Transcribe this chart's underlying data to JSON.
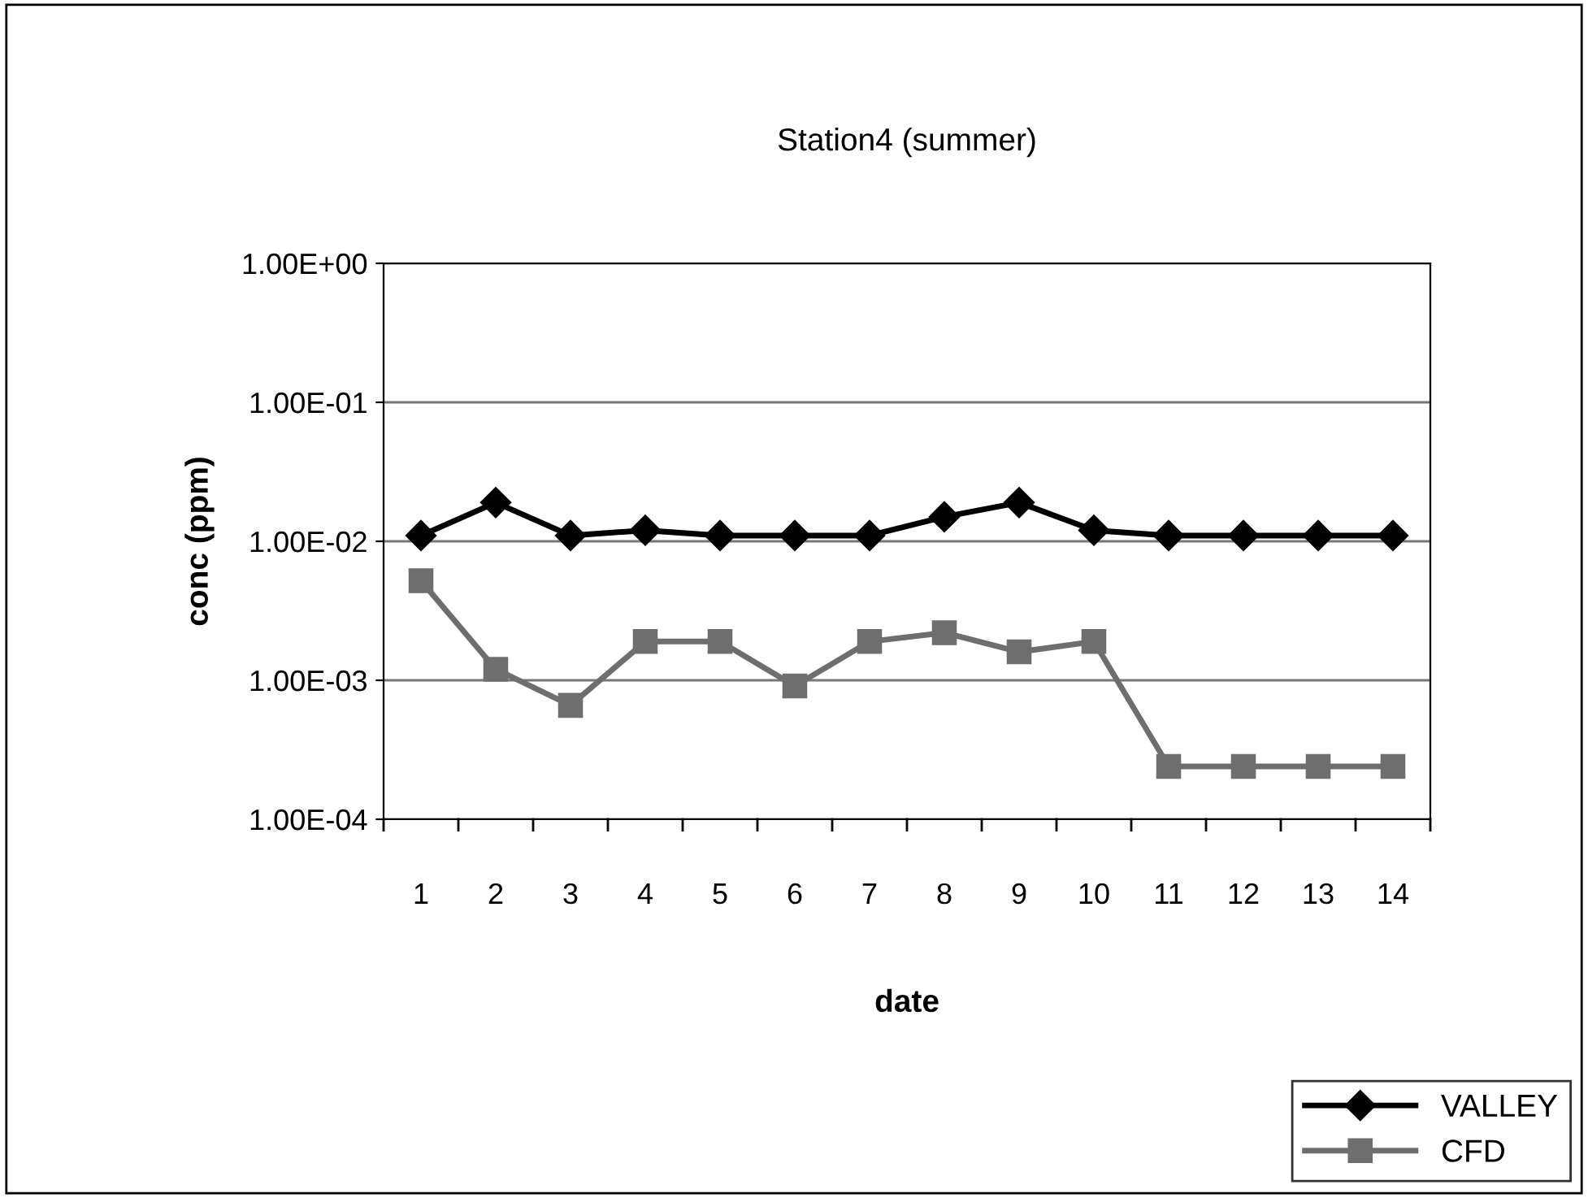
{
  "chart_data": {
    "type": "line",
    "title": "Station4 (summer)",
    "xlabel": "date",
    "ylabel": "conc (ppm)",
    "categories": [
      "1",
      "2",
      "3",
      "4",
      "5",
      "6",
      "7",
      "8",
      "9",
      "10",
      "11",
      "12",
      "13",
      "14"
    ],
    "series": [
      {
        "name": "VALLEY",
        "color": "#000000",
        "marker": "diamond",
        "values": [
          0.011,
          0.019,
          0.011,
          0.012,
          0.011,
          0.011,
          0.011,
          0.015,
          0.019,
          0.012,
          0.011,
          0.011,
          0.011,
          0.011
        ]
      },
      {
        "name": "CFD",
        "color": "#6e6e6e",
        "marker": "square",
        "values": [
          0.0052,
          0.0012,
          0.00066,
          0.0019,
          0.0019,
          0.00091,
          0.0019,
          0.0022,
          0.0016,
          0.0019,
          0.00024,
          0.00024,
          0.00024,
          0.00024
        ]
      }
    ],
    "log": "y",
    "ylim": [
      0.0001,
      1
    ],
    "yticks": [
      {
        "value": 0.0001,
        "label": "1.00E-04"
      },
      {
        "value": 0.001,
        "label": "1.00E-03"
      },
      {
        "value": 0.01,
        "label": "1.00E-02"
      },
      {
        "value": 0.1,
        "label": "1.00E-01"
      },
      {
        "value": 1,
        "label": "1.00E+00"
      }
    ],
    "grid": "y",
    "legend": "bottom right",
    "line_style": "solid"
  }
}
